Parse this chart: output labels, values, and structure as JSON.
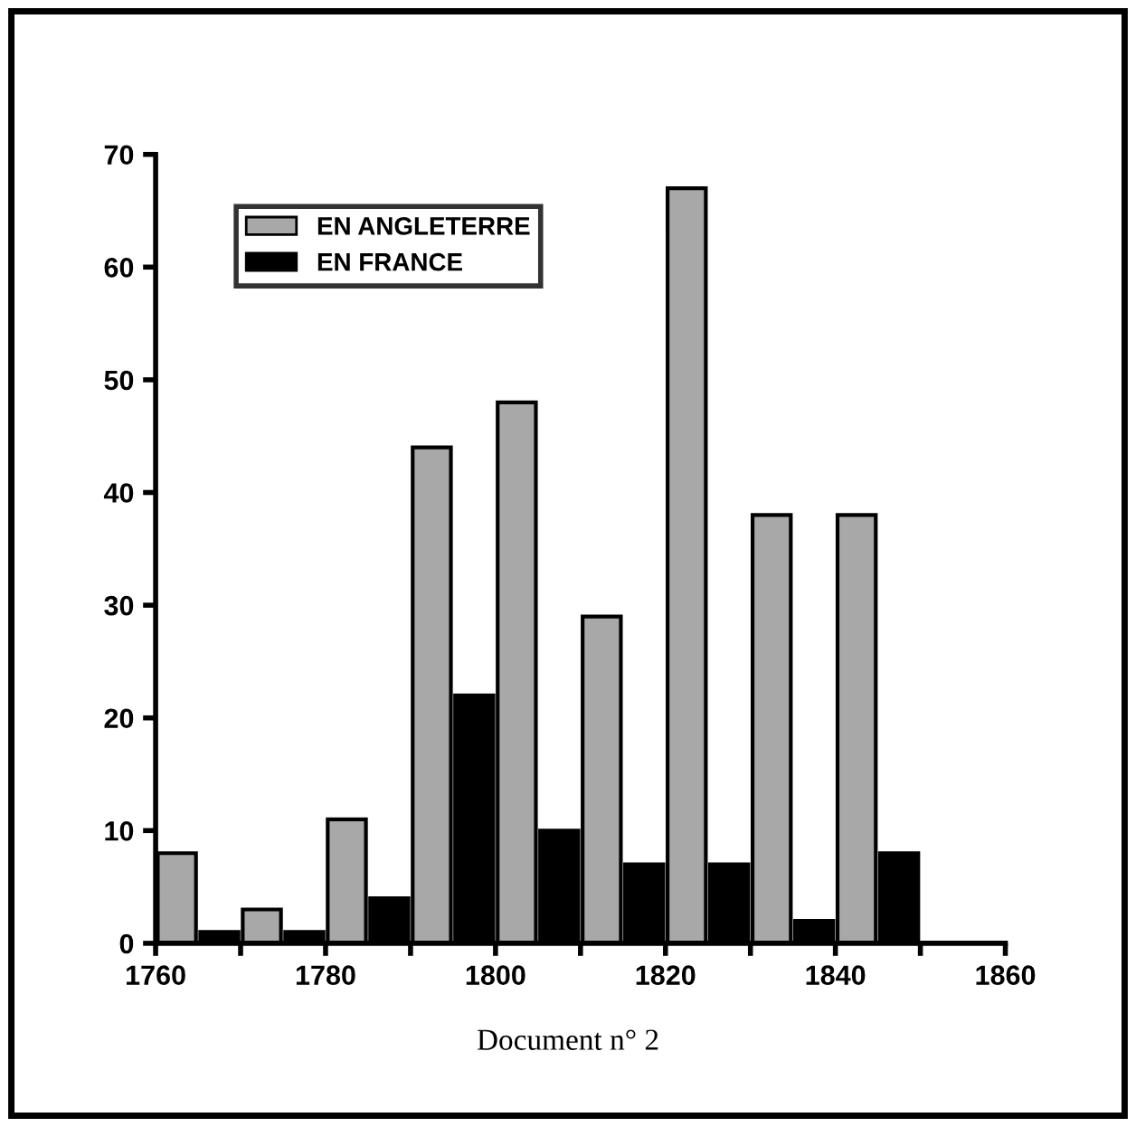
{
  "chart_data": {
    "type": "bar",
    "series": [
      {
        "name": "EN ANGLETERRE",
        "color": "#a8a8a8",
        "x": [
          1762.5,
          1772.5,
          1782.5,
          1792.5,
          1802.5,
          1812.5,
          1822.5,
          1832.5,
          1842.5
        ],
        "values": [
          8,
          3,
          11,
          44,
          48,
          29,
          67,
          38,
          38
        ]
      },
      {
        "name": "EN FRANCE",
        "color": "#000000",
        "x": [
          1767.5,
          1777.5,
          1787.5,
          1797.5,
          1807.5,
          1817.5,
          1827.5,
          1837.5,
          1847.5
        ],
        "values": [
          1,
          1,
          4,
          22,
          10,
          7,
          7,
          2,
          8
        ]
      }
    ],
    "xlim": [
      1760,
      1860
    ],
    "ylim": [
      0,
      70
    ],
    "xticks": [
      1760,
      {
        "value": 1770,
        "label": null
      },
      1780,
      {
        "value": 1790,
        "label": null
      },
      1800,
      {
        "value": 1810,
        "label": null
      },
      1820,
      {
        "value": 1830,
        "label": null
      },
      1840,
      {
        "value": 1850,
        "label": null
      },
      1860
    ],
    "yticks": [
      0,
      10,
      20,
      30,
      40,
      50,
      60,
      70
    ],
    "legend": "top left",
    "annotations": [
      "Document n° 2"
    ]
  }
}
